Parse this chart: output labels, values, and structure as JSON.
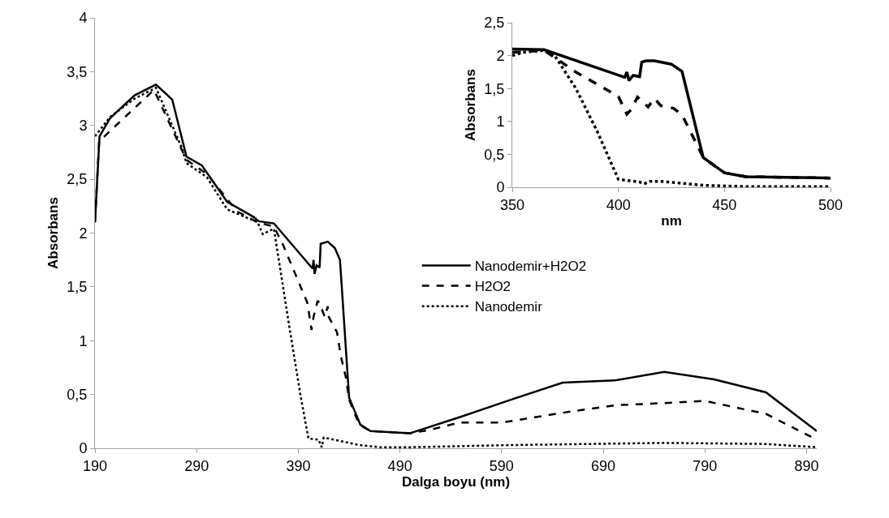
{
  "chart_data": [
    {
      "type": "line",
      "xlabel": "Dalga boyu (nm)",
      "ylabel": "Absorbans",
      "xlim": [
        190,
        900
      ],
      "xticks": [
        190,
        290,
        390,
        490,
        590,
        690,
        790,
        890
      ],
      "ylim": [
        0,
        4
      ],
      "yticks": [
        0,
        {
          "value": 0.5,
          "label": "0,5"
        },
        1,
        {
          "value": 1.5,
          "label": "1,5"
        },
        2,
        {
          "value": 2.5,
          "label": "2,5"
        },
        3,
        {
          "value": 3.5,
          "label": "3,5"
        },
        4
      ],
      "legend": "right",
      "series": [
        {
          "name": "Nanodemir+H2O2",
          "color": "#000000",
          "line_style": "solid",
          "x": [
            190,
            194.5,
            205,
            229,
            250,
            266,
            280,
            295,
            320,
            346,
            351,
            366,
            404,
            405,
            406,
            408,
            411,
            412,
            419,
            426,
            431,
            440,
            451,
            461,
            500,
            549,
            602,
            650,
            701,
            750,
            799,
            850,
            900
          ],
          "values": [
            2.1,
            2.9,
            3.07,
            3.28,
            3.38,
            3.24,
            2.71,
            2.63,
            2.29,
            2.15,
            2.11,
            2.09,
            1.67,
            1.75,
            1.62,
            1.7,
            1.68,
            1.9,
            1.92,
            1.86,
            1.75,
            0.47,
            0.22,
            0.16,
            0.14,
            0.29,
            0.46,
            0.61,
            0.63,
            0.71,
            0.64,
            0.52,
            0.16
          ]
        },
        {
          "name": "H2O2",
          "color": "#000000",
          "line_style": "dashed",
          "x": [
            190,
            194,
            205,
            248,
            280,
            300,
            330,
            350,
            366,
            375,
            399,
            403,
            405,
            409,
            411,
            416,
            419,
            420,
            428,
            432,
            437,
            440,
            450,
            461,
            500,
            519,
            549,
            591,
            650,
            702,
            750,
            790,
            850,
            900
          ],
          "values": [
            2.1,
            2.85,
            2.95,
            3.33,
            2.68,
            2.55,
            2.2,
            2.1,
            2.06,
            1.89,
            1.35,
            1.1,
            1.22,
            1.37,
            1.35,
            1.22,
            1.32,
            1.22,
            1.08,
            0.85,
            0.65,
            0.45,
            0.22,
            0.16,
            0.14,
            0.17,
            0.24,
            0.24,
            0.33,
            0.4,
            0.42,
            0.44,
            0.32,
            0.08
          ]
        },
        {
          "name": "Nanodemir",
          "color": "#000000",
          "line_style": "dotted",
          "x": [
            190,
            205,
            229,
            250,
            275,
            280,
            300,
            320,
            350,
            355,
            366,
            380,
            392,
            400,
            410,
            413,
            415,
            420,
            450,
            470,
            500,
            600,
            750,
            850,
            900
          ],
          "values": [
            2.9,
            3.08,
            3.25,
            3.35,
            2.8,
            2.65,
            2.52,
            2.22,
            2.1,
            1.99,
            2.04,
            1.2,
            0.5,
            0.09,
            0.08,
            0.01,
            0.1,
            0.09,
            0.03,
            0.01,
            0.01,
            0.03,
            0.05,
            0.04,
            0.01
          ]
        }
      ]
    },
    {
      "type": "line",
      "xlabel": "nm",
      "ylabel": "Absorbans",
      "xlim": [
        350,
        500
      ],
      "xticks": [
        350,
        400,
        450,
        500
      ],
      "ylim": [
        0,
        2.5
      ],
      "yticks": [
        0,
        {
          "value": 0.5,
          "label": "0,5"
        },
        1,
        {
          "value": 1.5,
          "label": "1,5"
        },
        2,
        {
          "value": 2.5,
          "label": "2,5"
        }
      ],
      "series": [
        {
          "color": "#000000",
          "line_style": "solid",
          "x": [
            350,
            365,
            403,
            404,
            405,
            407,
            410,
            411,
            413,
            417,
            425,
            430,
            440,
            450,
            460,
            500
          ],
          "values": [
            2.1,
            2.09,
            1.67,
            1.75,
            1.62,
            1.7,
            1.68,
            1.9,
            1.92,
            1.92,
            1.87,
            1.76,
            0.45,
            0.22,
            0.16,
            0.14
          ]
        },
        {
          "color": "#000000",
          "line_style": "dashed",
          "x": [
            350,
            365,
            380,
            400,
            404,
            406,
            409,
            414,
            417,
            420,
            426,
            430,
            437,
            440,
            450,
            460,
            500
          ],
          "values": [
            2.05,
            2.08,
            1.75,
            1.38,
            1.11,
            1.18,
            1.37,
            1.22,
            1.35,
            1.24,
            1.2,
            1.1,
            0.65,
            0.45,
            0.22,
            0.16,
            0.14
          ]
        },
        {
          "color": "#000000",
          "line_style": "dotted",
          "x": [
            350,
            355,
            365,
            370,
            380,
            390,
            400,
            410,
            412,
            415,
            420,
            440,
            460,
            500
          ],
          "values": [
            2.0,
            2.05,
            2.08,
            2.0,
            1.5,
            0.85,
            0.12,
            0.08,
            0.05,
            0.09,
            0.09,
            0.03,
            0.01,
            0.01
          ]
        }
      ]
    }
  ]
}
